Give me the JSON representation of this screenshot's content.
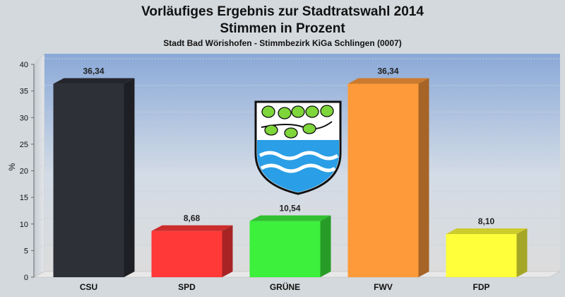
{
  "chart_data": {
    "type": "bar",
    "title": "Vorläufiges Ergebnis zur Stadtratswahl 2014",
    "subtitle": "Stimmen in Prozent",
    "caption": "Stadt Bad Wörishofen - Stimmbezirk KiGa Schlingen (0007)",
    "xlabel": "",
    "ylabel": "%",
    "ylim": [
      0,
      40
    ],
    "yticks": [
      0,
      5,
      10,
      15,
      20,
      25,
      30,
      35,
      40
    ],
    "categories": [
      "CSU",
      "SPD",
      "GRÜNE",
      "FWV",
      "FDP"
    ],
    "values": [
      36.34,
      8.68,
      10.54,
      36.34,
      8.1
    ],
    "value_labels": [
      "36,34",
      "8,68",
      "10,54",
      "36,34",
      "8,10"
    ],
    "colors": [
      "#2e3038",
      "#ff3838",
      "#3cf03c",
      "#ff9a3a",
      "#ffff3a"
    ],
    "grid": true,
    "legend": "none"
  },
  "emblem": {
    "name": "coat-of-arms",
    "colors": [
      "#7ed63a",
      "#2a9ee6"
    ]
  }
}
